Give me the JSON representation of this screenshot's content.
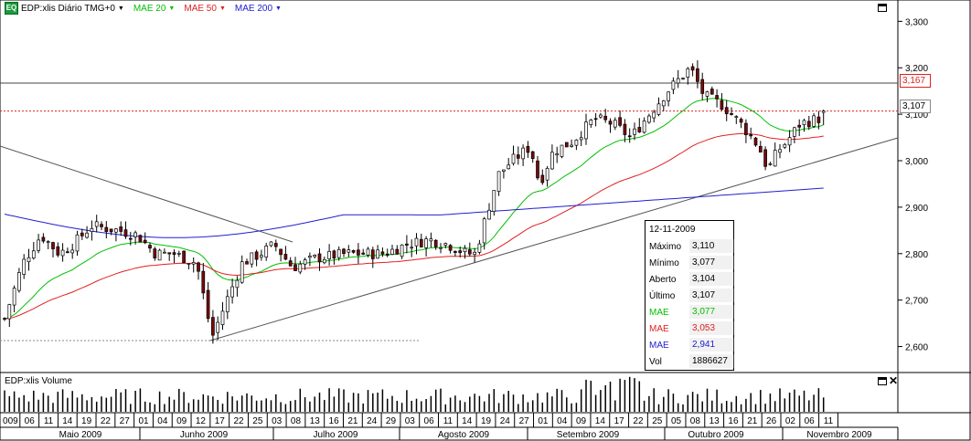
{
  "header": {
    "logo": "EQ",
    "symbol_label": "EDP:xlis Diário TMG+0",
    "ma_labels": [
      {
        "text": "MAE 20",
        "color": "#00c000"
      },
      {
        "text": "MAE 50",
        "color": "#e02020"
      },
      {
        "text": "MAE 200",
        "color": "#2020d0"
      }
    ]
  },
  "price_tags": {
    "resistance": "3,167",
    "last": "3,107"
  },
  "info_box": {
    "date": "12-11-2009",
    "rows": [
      {
        "label": "Máximo",
        "value": "3,110",
        "color": "#000000"
      },
      {
        "label": "Mínimo",
        "value": "3,077",
        "color": "#000000"
      },
      {
        "label": "Aberto",
        "value": "3,104",
        "color": "#000000"
      },
      {
        "label": "Último",
        "value": "3,107",
        "color": "#000000"
      },
      {
        "label": "MAE",
        "value": "3,077",
        "color": "#00c000"
      },
      {
        "label": "MAE",
        "value": "3,053",
        "color": "#e02020"
      },
      {
        "label": "MAE",
        "value": "2,941",
        "color": "#2020d0"
      },
      {
        "label": "Vol",
        "value": "1886627",
        "color": "#000000"
      }
    ]
  },
  "volume_header": {
    "label": "EDP:xlis Volume"
  },
  "chart_data": {
    "type": "candlestick",
    "title": "EDP:xlis Diário TMG+0",
    "y_axis": {
      "ticks": [
        "3,300",
        "3,200",
        "3,100",
        "3,000",
        "2,900",
        "2,800",
        "2,700",
        "2,600"
      ],
      "tick_values": [
        3.3,
        3.2,
        3.1,
        3.0,
        2.9,
        2.8,
        2.7,
        2.6
      ],
      "range": [
        2.55,
        3.34
      ],
      "position": "right"
    },
    "x_axis": {
      "day_ticks": [
        "009",
        "06",
        "11",
        "14",
        "19",
        "22",
        "27",
        "01",
        "04",
        "09",
        "12",
        "17",
        "22",
        "25",
        "03",
        "08",
        "13",
        "16",
        "21",
        "24",
        "29",
        "03",
        "06",
        "11",
        "14",
        "19",
        "24",
        "27",
        "01",
        "04",
        "09",
        "14",
        "17",
        "22",
        "25",
        "05",
        "08",
        "13",
        "16",
        "21",
        "26",
        "02",
        "06",
        "11"
      ],
      "months": [
        "Maio 2009",
        "Junho 2009",
        "Julho 2009",
        "Agosto 2009",
        "Setembro 2009",
        "Outubro 2009",
        "Novembro 2009"
      ]
    },
    "reference_lines": [
      {
        "name": "resistance",
        "value": 3.167,
        "style": "solid"
      },
      {
        "name": "last-price",
        "value": 3.107,
        "style": "dotted",
        "color": "#e02020"
      },
      {
        "name": "june-low",
        "value": 2.62,
        "style": "dotted"
      }
    ],
    "moving_averages": [
      {
        "name": "MAE 20",
        "color": "#00c000",
        "last": 3.077
      },
      {
        "name": "MAE 50",
        "color": "#e02020",
        "last": 3.053
      },
      {
        "name": "MAE 200",
        "color": "#2020d0",
        "last": 2.941
      }
    ],
    "last_candle": {
      "date": "12-11-2009",
      "open": 3.104,
      "high": 3.11,
      "low": 3.077,
      "close": 3.107,
      "volume": 1886627
    },
    "grid": false,
    "legend": "top-left"
  }
}
